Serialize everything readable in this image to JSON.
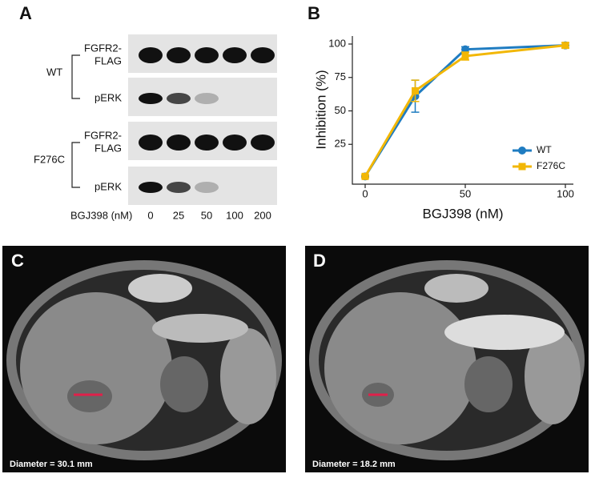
{
  "panel_a": {
    "label": "A",
    "groups": [
      {
        "name": "WT",
        "rows": [
          [
            "FGFR2-",
            "FLAG"
          ],
          [
            "pERK"
          ]
        ]
      },
      {
        "name": "F276C",
        "rows": [
          [
            "FGFR2-",
            "FLAG"
          ],
          [
            "pERK"
          ]
        ]
      }
    ],
    "x_label": "BGJ398 (nM)",
    "lanes": [
      "0",
      "25",
      "50",
      "100",
      "200"
    ]
  },
  "chart_data": {
    "type": "line",
    "label": "B",
    "xlabel": "BGJ398 (nM)",
    "ylabel": "Inhibition (%)",
    "x": [
      0,
      25,
      50,
      100
    ],
    "series": [
      {
        "name": "WT",
        "color": "#1f7cc1",
        "marker": "circle",
        "values": [
          1,
          61,
          96,
          99
        ],
        "errors": [
          1,
          12,
          2,
          2
        ]
      },
      {
        "name": "F276C",
        "color": "#f2b705",
        "marker": "square",
        "values": [
          1,
          65,
          91,
          99
        ],
        "errors": [
          1,
          8,
          3,
          2
        ]
      }
    ],
    "xlim": [
      0,
      100
    ],
    "xticks": [
      0,
      50,
      100
    ],
    "ylim": [
      0,
      100
    ],
    "yticks": [
      25,
      50,
      75,
      100
    ],
    "legend": "lower-right"
  },
  "panel_c": {
    "label": "C",
    "caption": "Diameter = 30.1 mm"
  },
  "panel_d": {
    "label": "D",
    "caption": "Diameter = 18.2 mm"
  }
}
